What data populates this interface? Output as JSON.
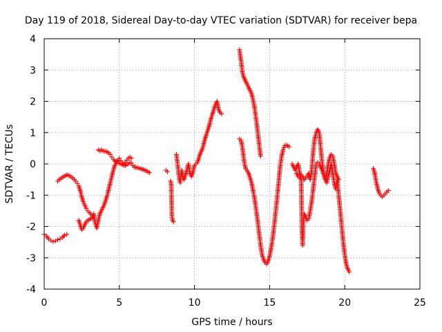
{
  "chart_data": {
    "type": "scatter",
    "title": "Day 119 of 2018, Sidereal Day-to-day VTEC variation (SDTVAR) for receiver bepa",
    "xlabel": "GPS time / hours",
    "ylabel": "SDTVAR / TECUs",
    "xlim": [
      0,
      25
    ],
    "ylim": [
      -4,
      4
    ],
    "xticks": [
      0,
      5,
      10,
      15,
      20,
      25
    ],
    "yticks": [
      -4,
      -3,
      -2,
      -1,
      0,
      1,
      2,
      3,
      4
    ],
    "xtick_labels": [
      "0",
      "5",
      "10",
      "15",
      "20",
      "25"
    ],
    "ytick_labels": [
      "-4",
      "-3",
      "-2",
      "-1",
      "0",
      "1",
      "2",
      "3",
      "4"
    ],
    "grid": true,
    "marker": "+",
    "color": "#ff0000",
    "series": [
      {
        "name": "seg1",
        "points": [
          [
            0.0,
            -2.25
          ],
          [
            0.15,
            -2.3
          ],
          [
            0.3,
            -2.4
          ],
          [
            0.45,
            -2.45
          ],
          [
            0.6,
            -2.48
          ],
          [
            0.75,
            -2.46
          ],
          [
            0.9,
            -2.42
          ],
          [
            1.05,
            -2.4
          ],
          [
            1.2,
            -2.35
          ],
          [
            1.35,
            -2.28
          ],
          [
            1.5,
            -2.25
          ]
        ]
      },
      {
        "name": "seg2",
        "points": [
          [
            0.9,
            -0.55
          ],
          [
            1.0,
            -0.5
          ],
          [
            1.1,
            -0.47
          ],
          [
            1.2,
            -0.43
          ],
          [
            1.3,
            -0.4
          ],
          [
            1.4,
            -0.38
          ],
          [
            1.5,
            -0.35
          ],
          [
            1.6,
            -0.36
          ],
          [
            1.7,
            -0.38
          ],
          [
            1.8,
            -0.42
          ],
          [
            1.9,
            -0.45
          ],
          [
            2.0,
            -0.5
          ],
          [
            2.1,
            -0.55
          ],
          [
            2.2,
            -0.62
          ],
          [
            2.3,
            -0.7
          ],
          [
            2.4,
            -0.85
          ],
          [
            2.5,
            -1.05
          ],
          [
            2.6,
            -1.2
          ],
          [
            2.7,
            -1.32
          ],
          [
            2.8,
            -1.42
          ],
          [
            2.9,
            -1.5
          ],
          [
            3.0,
            -1.55
          ],
          [
            3.1,
            -1.6
          ],
          [
            3.2,
            -1.65
          ],
          [
            3.3,
            -1.7
          ]
        ]
      },
      {
        "name": "seg3",
        "points": [
          [
            2.3,
            -1.8
          ],
          [
            2.4,
            -1.95
          ],
          [
            2.5,
            -2.1
          ],
          [
            2.6,
            -2.05
          ],
          [
            2.7,
            -1.95
          ],
          [
            2.8,
            -1.85
          ],
          [
            2.9,
            -1.8
          ],
          [
            3.0,
            -1.78
          ],
          [
            3.1,
            -1.75
          ],
          [
            3.2,
            -1.72
          ],
          [
            3.3,
            -1.6
          ],
          [
            3.4,
            -1.9
          ],
          [
            3.5,
            -2.05
          ],
          [
            3.6,
            -1.8
          ],
          [
            3.7,
            -1.6
          ],
          [
            3.8,
            -1.5
          ],
          [
            3.9,
            -1.4
          ],
          [
            4.0,
            -1.3
          ],
          [
            4.1,
            -1.15
          ],
          [
            4.2,
            -1.0
          ],
          [
            4.3,
            -0.8
          ],
          [
            4.4,
            -0.6
          ],
          [
            4.5,
            -0.4
          ],
          [
            4.6,
            -0.2
          ],
          [
            4.7,
            -0.05
          ],
          [
            4.8,
            0.05
          ],
          [
            4.9,
            0.12
          ],
          [
            5.0,
            0.18
          ],
          [
            5.1,
            0.1
          ],
          [
            5.2,
            0.02
          ],
          [
            5.3,
            0.0
          ],
          [
            5.4,
            0.05
          ],
          [
            5.5,
            0.12
          ],
          [
            5.6,
            0.18
          ],
          [
            5.7,
            0.22
          ],
          [
            5.8,
            0.18
          ]
        ]
      },
      {
        "name": "seg4",
        "points": [
          [
            3.6,
            0.45
          ],
          [
            3.7,
            0.42
          ],
          [
            3.8,
            0.45
          ],
          [
            3.9,
            0.42
          ],
          [
            4.0,
            0.4
          ],
          [
            4.1,
            0.4
          ],
          [
            4.2,
            0.38
          ],
          [
            4.3,
            0.35
          ],
          [
            4.4,
            0.3
          ],
          [
            4.5,
            0.22
          ],
          [
            4.6,
            0.15
          ],
          [
            4.7,
            0.1
          ],
          [
            4.8,
            0.08
          ],
          [
            4.9,
            0.05
          ],
          [
            5.0,
            0.02
          ],
          [
            5.1,
            0.0
          ],
          [
            5.2,
            -0.02
          ],
          [
            5.3,
            -0.05
          ],
          [
            5.4,
            -0.05
          ],
          [
            5.5,
            -0.02
          ],
          [
            5.6,
            0.0
          ],
          [
            5.7,
            0.05
          ],
          [
            5.8,
            0.02
          ],
          [
            5.9,
            -0.05
          ],
          [
            6.0,
            -0.1
          ],
          [
            6.2,
            -0.12
          ],
          [
            6.4,
            -0.15
          ],
          [
            6.6,
            -0.18
          ],
          [
            6.8,
            -0.22
          ],
          [
            7.0,
            -0.28
          ]
        ]
      },
      {
        "name": "seg5",
        "points": [
          [
            8.1,
            -0.2
          ],
          [
            8.2,
            -0.25
          ]
        ]
      },
      {
        "name": "seg6",
        "points": [
          [
            8.4,
            -0.55
          ],
          [
            8.45,
            -0.6
          ],
          [
            8.5,
            -1.7
          ],
          [
            8.55,
            -1.8
          ],
          [
            8.6,
            -1.85
          ]
        ]
      },
      {
        "name": "seg7",
        "points": [
          [
            8.8,
            0.3
          ],
          [
            8.85,
            0.1
          ],
          [
            8.9,
            -0.1
          ],
          [
            8.95,
            -0.3
          ],
          [
            9.0,
            -0.5
          ],
          [
            9.05,
            -0.6
          ],
          [
            9.1,
            -0.4
          ],
          [
            9.15,
            -0.2
          ],
          [
            9.2,
            -0.35
          ],
          [
            9.25,
            -0.45
          ],
          [
            9.3,
            -0.5
          ],
          [
            9.4,
            -0.35
          ],
          [
            9.5,
            -0.2
          ],
          [
            9.6,
            0.0
          ],
          [
            9.7,
            -0.3
          ],
          [
            9.8,
            -0.4
          ],
          [
            9.9,
            -0.25
          ],
          [
            10.0,
            -0.05
          ],
          [
            10.1,
            0.0
          ],
          [
            10.2,
            0.05
          ],
          [
            10.3,
            0.2
          ],
          [
            10.4,
            0.35
          ],
          [
            10.5,
            0.45
          ],
          [
            10.6,
            0.6
          ],
          [
            10.7,
            0.8
          ],
          [
            10.8,
            0.95
          ],
          [
            10.9,
            1.1
          ],
          [
            11.0,
            1.25
          ],
          [
            11.1,
            1.45
          ],
          [
            11.2,
            1.6
          ],
          [
            11.3,
            1.75
          ],
          [
            11.4,
            1.9
          ],
          [
            11.5,
            2.0
          ],
          [
            11.55,
            1.9
          ],
          [
            11.6,
            1.75
          ],
          [
            11.7,
            1.65
          ],
          [
            11.8,
            1.6
          ]
        ]
      },
      {
        "name": "seg8",
        "points": [
          [
            13.0,
            3.65
          ],
          [
            13.05,
            3.45
          ],
          [
            13.1,
            3.3
          ],
          [
            13.15,
            3.1
          ],
          [
            13.2,
            2.9
          ],
          [
            13.3,
            2.75
          ],
          [
            13.4,
            2.65
          ],
          [
            13.5,
            2.55
          ],
          [
            13.6,
            2.45
          ],
          [
            13.7,
            2.35
          ],
          [
            13.8,
            2.25
          ],
          [
            13.9,
            2.05
          ],
          [
            14.0,
            1.8
          ],
          [
            14.1,
            1.45
          ],
          [
            14.2,
            1.05
          ],
          [
            14.3,
            0.65
          ],
          [
            14.4,
            0.25
          ]
        ]
      },
      {
        "name": "seg9",
        "points": [
          [
            13.0,
            0.8
          ],
          [
            13.1,
            0.75
          ],
          [
            13.2,
            0.5
          ],
          [
            13.3,
            0.1
          ],
          [
            13.4,
            -0.15
          ],
          [
            13.5,
            -0.2
          ],
          [
            13.6,
            -0.3
          ],
          [
            13.7,
            -0.45
          ],
          [
            13.8,
            -0.6
          ],
          [
            13.9,
            -0.85
          ],
          [
            14.0,
            -1.1
          ],
          [
            14.1,
            -1.45
          ],
          [
            14.2,
            -1.8
          ],
          [
            14.3,
            -2.2
          ],
          [
            14.4,
            -2.6
          ],
          [
            14.5,
            -2.9
          ],
          [
            14.6,
            -3.05
          ],
          [
            14.7,
            -3.15
          ],
          [
            14.8,
            -3.2
          ],
          [
            14.9,
            -3.1
          ],
          [
            15.0,
            -2.95
          ],
          [
            15.1,
            -2.7
          ],
          [
            15.2,
            -2.4
          ],
          [
            15.3,
            -2.0
          ],
          [
            15.4,
            -1.55
          ],
          [
            15.5,
            -1.1
          ],
          [
            15.6,
            -0.6
          ],
          [
            15.7,
            -0.1
          ],
          [
            15.8,
            0.25
          ],
          [
            15.9,
            0.45
          ],
          [
            16.0,
            0.58
          ],
          [
            16.1,
            0.6
          ],
          [
            16.2,
            0.58
          ],
          [
            16.3,
            0.55
          ]
        ]
      },
      {
        "name": "seg10",
        "points": [
          [
            16.5,
            0.0
          ],
          [
            16.6,
            -0.1
          ],
          [
            16.7,
            -0.2
          ],
          [
            16.8,
            -0.1
          ],
          [
            16.9,
            0.0
          ],
          [
            17.0,
            -0.3
          ],
          [
            17.1,
            -0.5
          ],
          [
            17.15,
            -2.0
          ],
          [
            17.2,
            -2.6
          ],
          [
            17.25,
            -1.8
          ],
          [
            17.3,
            -1.6
          ],
          [
            17.4,
            -1.7
          ],
          [
            17.5,
            -1.8
          ],
          [
            17.6,
            -1.75
          ],
          [
            17.7,
            -1.5
          ],
          [
            17.8,
            -1.2
          ],
          [
            17.9,
            -0.8
          ],
          [
            18.0,
            -0.4
          ],
          [
            18.1,
            0.0
          ],
          [
            18.2,
            0.05
          ],
          [
            18.3,
            0.0
          ],
          [
            18.4,
            -0.1
          ],
          [
            18.5,
            -0.2
          ],
          [
            18.6,
            -0.35
          ],
          [
            18.7,
            -0.5
          ],
          [
            18.8,
            -0.6
          ],
          [
            18.9,
            -0.4
          ],
          [
            19.0,
            -0.2
          ],
          [
            19.1,
            0.0
          ],
          [
            19.2,
            -0.3
          ],
          [
            19.3,
            -0.6
          ],
          [
            19.4,
            -0.8
          ],
          [
            19.5,
            -0.5
          ],
          [
            19.6,
            -1.0
          ],
          [
            19.7,
            -1.5
          ],
          [
            19.8,
            -2.0
          ],
          [
            19.9,
            -2.5
          ],
          [
            20.0,
            -2.9
          ],
          [
            20.1,
            -3.2
          ],
          [
            20.2,
            -3.35
          ],
          [
            20.3,
            -3.45
          ]
        ]
      },
      {
        "name": "seg11",
        "points": [
          [
            16.8,
            -0.3
          ],
          [
            16.9,
            -0.4
          ],
          [
            17.0,
            -0.45
          ],
          [
            17.1,
            -0.35
          ],
          [
            17.2,
            -0.4
          ],
          [
            17.3,
            -0.5
          ],
          [
            17.4,
            -0.45
          ],
          [
            17.5,
            -0.4
          ],
          [
            17.6,
            -0.3
          ],
          [
            17.7,
            -0.5
          ],
          [
            17.8,
            -0.2
          ],
          [
            17.9,
            0.4
          ],
          [
            18.0,
            0.8
          ],
          [
            18.1,
            1.0
          ],
          [
            18.2,
            1.1
          ],
          [
            18.3,
            1.0
          ],
          [
            18.4,
            0.5
          ],
          [
            18.5,
            0.0
          ],
          [
            18.6,
            -0.3
          ],
          [
            18.7,
            -0.5
          ],
          [
            18.8,
            -0.3
          ],
          [
            18.9,
            0.0
          ],
          [
            19.0,
            0.2
          ],
          [
            19.1,
            0.3
          ],
          [
            19.2,
            0.25
          ],
          [
            19.3,
            0.0
          ],
          [
            19.4,
            -0.3
          ],
          [
            19.5,
            -0.4
          ],
          [
            19.6,
            -0.5
          ]
        ]
      },
      {
        "name": "seg12",
        "points": [
          [
            21.9,
            -0.15
          ],
          [
            22.0,
            -0.3
          ],
          [
            22.1,
            -0.6
          ],
          [
            22.2,
            -0.8
          ],
          [
            22.3,
            -0.95
          ],
          [
            22.4,
            -1.0
          ],
          [
            22.5,
            -1.05
          ],
          [
            22.6,
            -1.0
          ],
          [
            22.7,
            -0.95
          ],
          [
            22.8,
            -0.9
          ],
          [
            22.9,
            -0.85
          ]
        ]
      }
    ]
  }
}
